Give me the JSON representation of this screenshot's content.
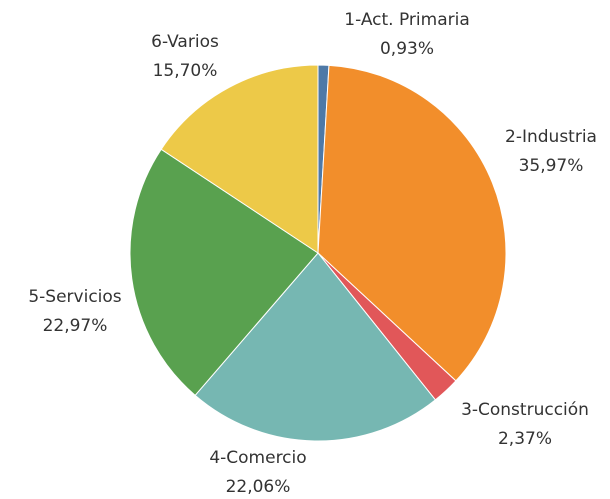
{
  "chart_data": {
    "type": "pie",
    "categories": [
      "1-Act. Primaria",
      "2-Industria",
      "3-Construcción",
      "4-Comercio",
      "5-Servicios",
      "6-Varios"
    ],
    "values": [
      0.93,
      35.97,
      2.37,
      22.06,
      22.97,
      15.7
    ],
    "value_labels": [
      "0,93%",
      "35,97%",
      "2,37%",
      "22,06%",
      "22,97%",
      "15,70%"
    ],
    "colors": [
      "#4e79a7",
      "#f28e2b",
      "#e15759",
      "#76b7b2",
      "#59a14f",
      "#edc948"
    ]
  }
}
